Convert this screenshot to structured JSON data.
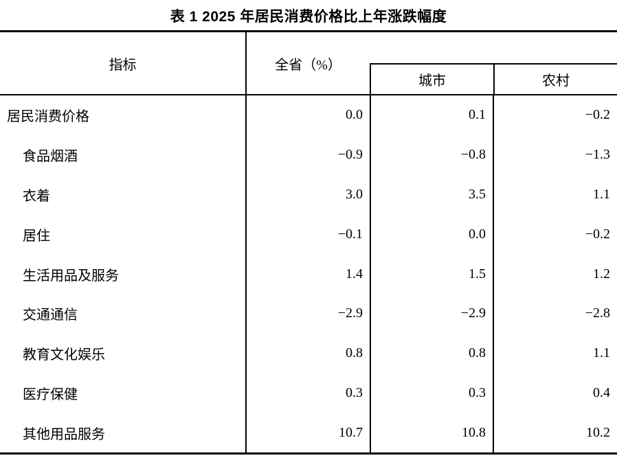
{
  "title": "表 1 2025 年居民消费价格比上年涨跌幅度",
  "table": {
    "header": {
      "indicator": "指标",
      "province": "全省（%）",
      "city": "城市",
      "rural": "农村"
    },
    "rows": [
      {
        "label": "居民消费价格",
        "province": "0.0",
        "city": "0.1",
        "rural": "−0.2"
      },
      {
        "label": "食品烟酒",
        "province": "−0.9",
        "city": "−0.8",
        "rural": "−1.3"
      },
      {
        "label": "衣着",
        "province": "3.0",
        "city": "3.5",
        "rural": "1.1"
      },
      {
        "label": "居住",
        "province": "−0.1",
        "city": "0.0",
        "rural": "−0.2"
      },
      {
        "label": "生活用品及服务",
        "province": "1.4",
        "city": "1.5",
        "rural": "1.2"
      },
      {
        "label": "交通通信",
        "province": "−2.9",
        "city": "−2.9",
        "rural": "−2.8"
      },
      {
        "label": "教育文化娱乐",
        "province": "0.8",
        "city": "0.8",
        "rural": "1.1"
      },
      {
        "label": "医疗保健",
        "province": "0.3",
        "city": "0.3",
        "rural": "0.4"
      },
      {
        "label": "其他用品服务",
        "province": "10.7",
        "city": "10.8",
        "rural": "10.2"
      }
    ]
  },
  "chart_data": {
    "type": "table",
    "title": "表 1 2025 年居民消费价格比上年涨跌幅度",
    "columns": [
      "指标",
      "全省（%）",
      "城市",
      "农村"
    ],
    "rows": [
      [
        "居民消费价格",
        0.0,
        0.1,
        -0.2
      ],
      [
        "食品烟酒",
        -0.9,
        -0.8,
        -1.3
      ],
      [
        "衣着",
        3.0,
        3.5,
        1.1
      ],
      [
        "居住",
        -0.1,
        0.0,
        -0.2
      ],
      [
        "生活用品及服务",
        1.4,
        1.5,
        1.2
      ],
      [
        "交通通信",
        -2.9,
        -2.9,
        -2.8
      ],
      [
        "教育文化娱乐",
        0.8,
        0.8,
        1.1
      ],
      [
        "医疗保健",
        0.3,
        0.3,
        0.4
      ],
      [
        "其他用品服务",
        10.7,
        10.8,
        10.2
      ]
    ]
  },
  "colors": {
    "text": "#000000",
    "background": "#ffffff",
    "rule": "#000000"
  }
}
